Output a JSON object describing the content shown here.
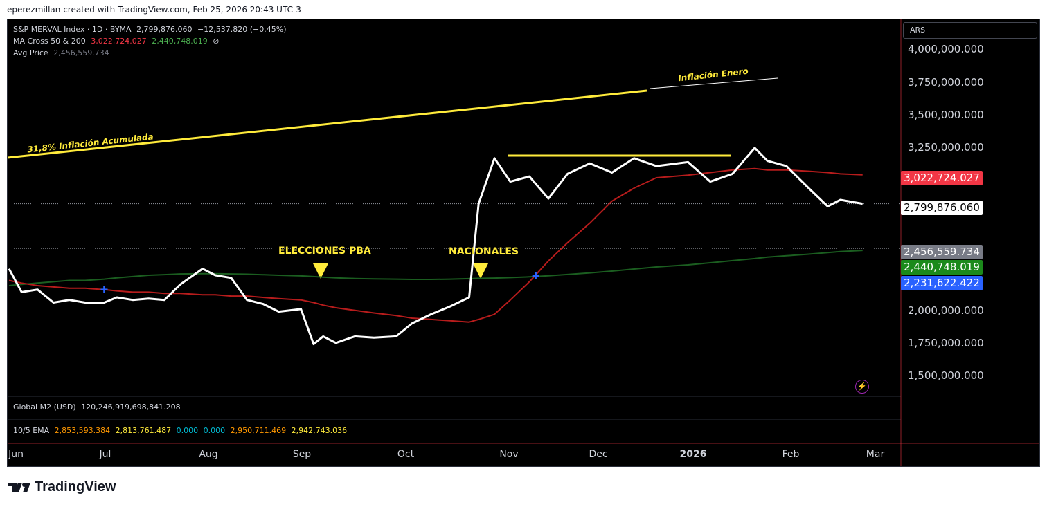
{
  "header": {
    "attribution": "eperezmillan created with TradingView.com, Feb 25, 2026 20:43 UTC-3"
  },
  "legend": {
    "symbol": "S&P MERVAL Index · 1D · BYMA",
    "last": "2,799,876.060",
    "change": "−12,537.820 (−0.45%)",
    "ma_label": "MA Cross 50 & 200",
    "ma50": "3,022,724.027",
    "ma200": "2,440,748.019",
    "ma_icon": "⊘",
    "avg_label": "Avg Price",
    "avg_value": "2,456,559.734",
    "m2_label": "Global M2 (USD)",
    "m2_value": "120,246,919,698,841.208",
    "ema_label": "10/5 EMA",
    "ema_values": [
      "2,853,593.384",
      "2,813,761.487",
      "0.000",
      "0.000",
      "2,950,711.469",
      "2,942,743.036"
    ]
  },
  "price_axis": {
    "currency": "ARS",
    "ticks": [
      "4,000,000.000",
      "3,750,000.000",
      "3,500,000.000",
      "3,250,000.000",
      "2,000,000.000",
      "1,750,000.000",
      "1,500,000.000"
    ],
    "tags": [
      {
        "label": "3,022,724.027",
        "bg": "#f23645",
        "fg": "#ffffff"
      },
      {
        "label": "2,799,876.060",
        "bg": "#ffffff",
        "fg": "#000000"
      },
      {
        "label": "2,456,559.734",
        "bg": "#787b86",
        "fg": "#ffffff"
      },
      {
        "label": "2,440,748.019",
        "bg": "#1b8a1b",
        "fg": "#ffffff"
      },
      {
        "label": "2,231,622.422",
        "bg": "#2962ff",
        "fg": "#ffffff"
      }
    ]
  },
  "time_axis": [
    "Jun",
    "Jul",
    "Aug",
    "Sep",
    "Oct",
    "Nov",
    "Dec",
    "2026",
    "Feb",
    "Mar"
  ],
  "annotations": {
    "inflation_acum": "31,8% Inflación Acumulada",
    "inflation_enero": "Inflación Enero",
    "elecciones": "ELECCIONES PBA",
    "nacionales": "NACIONALES"
  },
  "colors": {
    "price": "#ffffff",
    "ma50": "#b71c1c",
    "ma200": "#1b5e20",
    "annotation": "#ffeb3b",
    "ema_orange": "#ff9800",
    "ema_yellow": "#ffeb3b",
    "ema_cyan": "#00bcd4"
  },
  "brand": "TradingView",
  "chart_data": {
    "type": "line",
    "title": "S&P MERVAL Index · 1D · BYMA",
    "yunit": "ARS",
    "ylim": [
      1350000,
      4200000
    ],
    "x": [
      "2025-06-01",
      "2025-06-05",
      "2025-06-10",
      "2025-06-15",
      "2025-06-20",
      "2025-06-25",
      "2025-07-01",
      "2025-07-05",
      "2025-07-10",
      "2025-07-15",
      "2025-07-20",
      "2025-07-25",
      "2025-08-01",
      "2025-08-05",
      "2025-08-10",
      "2025-08-15",
      "2025-08-20",
      "2025-08-25",
      "2025-09-01",
      "2025-09-05",
      "2025-09-08",
      "2025-09-12",
      "2025-09-18",
      "2025-09-24",
      "2025-10-01",
      "2025-10-06",
      "2025-10-12",
      "2025-10-18",
      "2025-10-24",
      "2025-10-27",
      "2025-11-01",
      "2025-11-06",
      "2025-11-12",
      "2025-11-18",
      "2025-11-24",
      "2025-12-01",
      "2025-12-08",
      "2025-12-15",
      "2025-12-22",
      "2026-01-01",
      "2026-01-08",
      "2026-01-15",
      "2026-01-22",
      "2026-01-26",
      "2026-02-01",
      "2026-02-08",
      "2026-02-14",
      "2026-02-18",
      "2026-02-25"
    ],
    "series": [
      {
        "name": "S&P MERVAL Index",
        "values": [
          2300000,
          2120000,
          2140000,
          2040000,
          2060000,
          2040000,
          2040000,
          2080000,
          2060000,
          2070000,
          2060000,
          2180000,
          2300000,
          2250000,
          2230000,
          2060000,
          2030000,
          1970000,
          1990000,
          1720000,
          1780000,
          1730000,
          1780000,
          1770000,
          1780000,
          1880000,
          1950000,
          2010000,
          2080000,
          2800000,
          3150000,
          2970000,
          3010000,
          2840000,
          3030000,
          3110000,
          3040000,
          3150000,
          3090000,
          3120000,
          2970000,
          3030000,
          3230000,
          3130000,
          3090000,
          2920000,
          2780000,
          2830000,
          2800000
        ]
      },
      {
        "name": "MA 50",
        "values": [
          2210000,
          2190000,
          2170000,
          2160000,
          2150000,
          2150000,
          2140000,
          2130000,
          2120000,
          2120000,
          2110000,
          2110000,
          2100000,
          2100000,
          2090000,
          2090000,
          2080000,
          2070000,
          2060000,
          2040000,
          2020000,
          2000000,
          1980000,
          1960000,
          1940000,
          1920000,
          1910000,
          1900000,
          1890000,
          1910000,
          1950000,
          2060000,
          2200000,
          2360000,
          2500000,
          2650000,
          2820000,
          2920000,
          3000000,
          3020000,
          3040000,
          3060000,
          3070000,
          3060000,
          3060000,
          3050000,
          3040000,
          3030000,
          3022724
        ]
      },
      {
        "name": "MA 200",
        "values": [
          2170000,
          2180000,
          2190000,
          2200000,
          2210000,
          2210000,
          2220000,
          2230000,
          2240000,
          2250000,
          2255000,
          2260000,
          2262000,
          2262000,
          2260000,
          2258000,
          2254000,
          2250000,
          2245000,
          2240000,
          2235000,
          2230000,
          2225000,
          2222000,
          2220000,
          2218000,
          2218000,
          2220000,
          2224000,
          2226000,
          2228000,
          2232000,
          2238000,
          2246000,
          2256000,
          2268000,
          2282000,
          2298000,
          2314000,
          2330000,
          2346000,
          2362000,
          2378000,
          2390000,
          2400000,
          2412000,
          2424000,
          2432000,
          2440748
        ]
      }
    ],
    "reference_lines": [
      {
        "label": "Avg Price",
        "value": 2456559.734
      },
      {
        "label": "Last",
        "value": 2799876.06
      }
    ]
  }
}
